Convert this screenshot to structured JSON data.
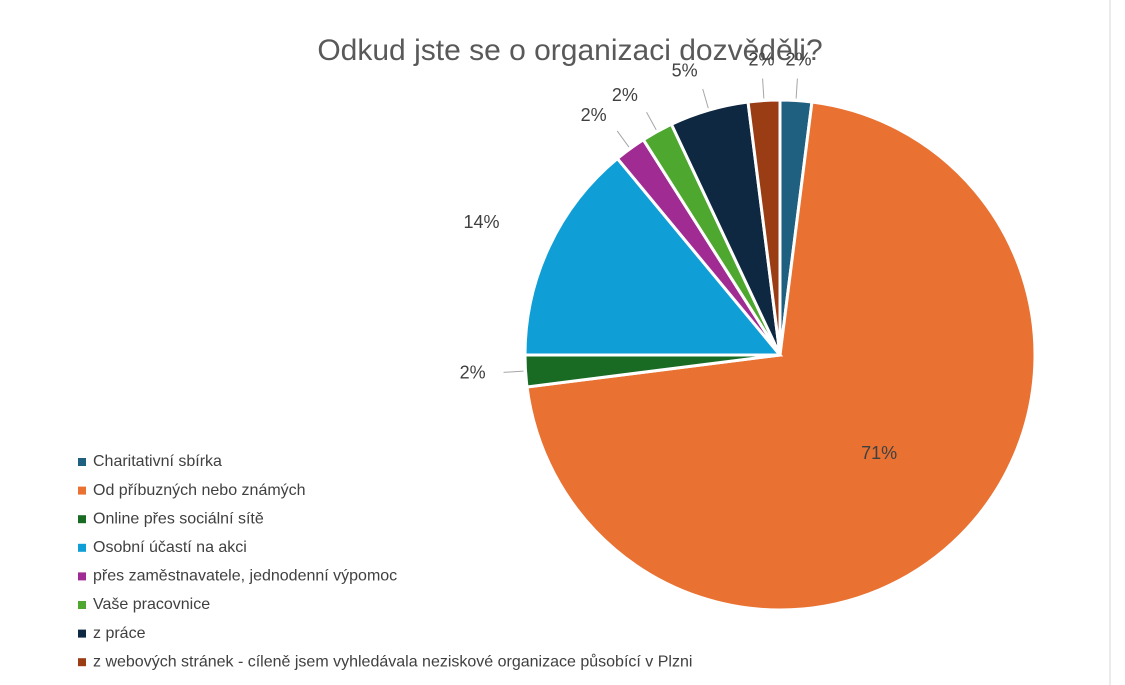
{
  "chart_data": {
    "type": "pie",
    "title": "Odkud jste se o organizaci dozvěděli?",
    "categories": [
      "Charitativní sbírka",
      "Od příbuzných nebo známých",
      "Online přes sociální sítě",
      "Osobní účastí na akci",
      "přes zaměstnavatele, jednodenní výpomoc",
      "Vaše pracovnice",
      "z práce",
      "z webových stránek - cíleně jsem vyhledávala neziskové organizace působící v Plzni"
    ],
    "values": [
      2,
      71,
      2,
      14,
      2,
      2,
      5,
      2
    ],
    "value_labels": [
      "2%",
      "71%",
      "2%",
      "14%",
      "2%",
      "2%",
      "5%",
      "2%"
    ],
    "colors": [
      "#1f5f80",
      "#e97132",
      "#196b24",
      "#0f9ed5",
      "#a02b93",
      "#4ea72e",
      "#0e2841",
      "#9a3c14"
    ],
    "legend": "left"
  }
}
